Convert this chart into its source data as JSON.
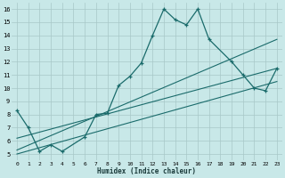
{
  "bg_color": "#c8e8e8",
  "grid_color": "#a8c8c8",
  "line_color": "#1a6b6b",
  "xlabel": "Humidex (Indice chaleur)",
  "xlim": [
    -0.5,
    23.5
  ],
  "ylim": [
    4.5,
    16.5
  ],
  "xticks": [
    0,
    1,
    2,
    3,
    4,
    5,
    6,
    7,
    8,
    9,
    10,
    11,
    12,
    13,
    14,
    15,
    16,
    17,
    18,
    19,
    20,
    21,
    22,
    23
  ],
  "yticks": [
    5,
    6,
    7,
    8,
    9,
    10,
    11,
    12,
    13,
    14,
    15,
    16
  ],
  "series1_x": [
    0,
    1,
    2,
    3,
    4,
    6,
    7,
    8,
    9,
    10,
    11,
    12,
    13,
    14,
    15,
    16,
    17,
    19,
    20,
    21,
    22,
    23
  ],
  "series1_y": [
    8.3,
    7.0,
    5.2,
    5.7,
    5.2,
    6.3,
    8.0,
    8.1,
    10.2,
    10.9,
    11.9,
    14.0,
    16.0,
    15.2,
    14.8,
    16.0,
    13.7,
    12.0,
    11.0,
    10.0,
    9.8,
    11.5
  ],
  "line1_x": [
    0,
    23
  ],
  "line1_y": [
    5.0,
    10.5
  ],
  "line2_x": [
    0,
    23
  ],
  "line2_y": [
    5.3,
    13.7
  ],
  "line3_x": [
    0,
    23
  ],
  "line3_y": [
    6.2,
    11.5
  ]
}
